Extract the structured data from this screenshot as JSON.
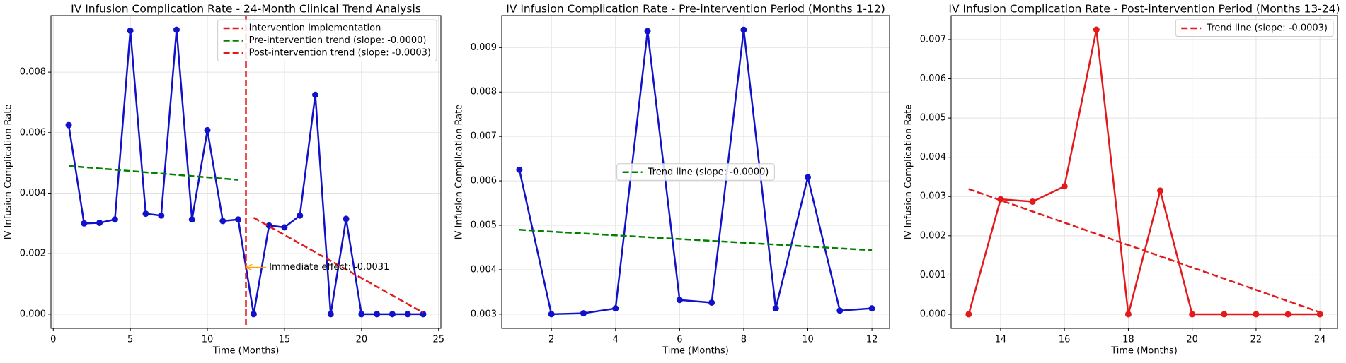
{
  "chart_data": [
    {
      "type": "line",
      "title": "IV Infusion Complication Rate - 24-Month Clinical Trend Analysis",
      "x_label": "Time (Months)",
      "y_label": "IV Infusion Complication Rate",
      "xlim": [
        -0.15,
        25.15
      ],
      "ylim": [
        -0.00047,
        0.00987
      ],
      "xticks": [
        0,
        5,
        10,
        15,
        20,
        25
      ],
      "yticks": [
        {
          "value": 0,
          "label": "0.000"
        },
        {
          "value": 0.002,
          "label": "0.002"
        },
        {
          "value": 0.004,
          "label": "0.004"
        },
        {
          "value": 0.006,
          "label": "0.006"
        },
        {
          "value": 0.008,
          "label": "0.008"
        }
      ],
      "grid": true,
      "legend": "upper right",
      "series": [
        {
          "color": "#1111cc",
          "marker": true,
          "dashed": false,
          "x": [
            1,
            2,
            3,
            4,
            5,
            6,
            7,
            8,
            9,
            10,
            11,
            12,
            13,
            14,
            15,
            16,
            17,
            18,
            19,
            20,
            21,
            22,
            23,
            24
          ],
          "values": [
            0.00625,
            0.003,
            0.00302,
            0.00313,
            0.00937,
            0.00332,
            0.00326,
            0.0094,
            0.00313,
            0.00608,
            0.00308,
            0.00313,
            0,
            0.00293,
            0.00287,
            0.00326,
            0.00725,
            0,
            0.00315,
            0,
            0,
            0,
            0,
            0
          ]
        },
        {
          "name": "Pre-intervention trend (slope: -0.0000)",
          "color": "#008000",
          "marker": false,
          "dashed": true,
          "x": [
            1,
            12
          ],
          "values": [
            0.0049,
            0.00444
          ]
        },
        {
          "name": "Post-intervention trend (slope: -0.0003)",
          "color": "#e31a1c",
          "marker": false,
          "dashed": true,
          "x": [
            13,
            24
          ],
          "values": [
            0.00319,
            5e-05
          ]
        }
      ],
      "vlines": [
        {
          "name": "Intervention Implementation",
          "x": 12.5,
          "color": "#e31a1c"
        }
      ],
      "annotations": [
        {
          "text": "Immediate effect: -0.0031",
          "x": 14,
          "y": 0.00155,
          "arrow_x": 12.5,
          "arrow_y": 0.00155,
          "color": "orange"
        }
      ]
    },
    {
      "type": "line",
      "title": "IV Infusion Complication Rate - Pre-intervention Period (Months 1-12)",
      "x_label": "Time (Months)",
      "y_label": "IV Infusion Complication Rate",
      "xlim": [
        0.45,
        12.55
      ],
      "ylim": [
        0.00268,
        0.00972
      ],
      "xticks": [
        2,
        4,
        6,
        8,
        10,
        12
      ],
      "yticks": [
        0.003,
        0.004,
        0.005,
        0.006,
        0.007,
        0.008,
        0.009
      ],
      "grid": true,
      "legend": "center",
      "series": [
        {
          "color": "#1111cc",
          "marker": true,
          "dashed": false,
          "x": [
            1,
            2,
            3,
            4,
            5,
            6,
            7,
            8,
            9,
            10,
            11,
            12
          ],
          "values": [
            0.00625,
            0.003,
            0.00302,
            0.00313,
            0.00937,
            0.00332,
            0.00326,
            0.0094,
            0.00313,
            0.00608,
            0.00308,
            0.00313
          ]
        },
        {
          "name": "Trend line (slope: -0.0000)",
          "color": "#008000",
          "marker": false,
          "dashed": true,
          "x": [
            1,
            12
          ],
          "values": [
            0.0049,
            0.00444
          ]
        }
      ],
      "vlines": [],
      "annotations": []
    },
    {
      "type": "line",
      "title": "IV Infusion Complication Rate - Post-intervention Period (Months 13-24)",
      "x_label": "Time (Months)",
      "y_label": "IV Infusion Complication Rate",
      "xlim": [
        12.45,
        24.55
      ],
      "ylim": [
        -0.00036,
        0.00761
      ],
      "xticks": [
        14,
        16,
        18,
        20,
        22,
        24
      ],
      "yticks": [
        {
          "value": 0,
          "label": "0.000"
        },
        {
          "value": 0.001,
          "label": "0.001"
        },
        {
          "value": 0.002,
          "label": "0.002"
        },
        {
          "value": 0.003,
          "label": "0.003"
        },
        {
          "value": 0.004,
          "label": "0.004"
        },
        {
          "value": 0.005,
          "label": "0.005"
        },
        {
          "value": 0.006,
          "label": "0.006"
        },
        {
          "value": 0.007,
          "label": "0.007"
        }
      ],
      "grid": true,
      "legend": "upper right",
      "series": [
        {
          "color": "#e31a1c",
          "marker": true,
          "dashed": false,
          "x": [
            13,
            14,
            15,
            16,
            17,
            18,
            19,
            20,
            21,
            22,
            23,
            24
          ],
          "values": [
            0,
            0.00293,
            0.00287,
            0.00326,
            0.00725,
            0,
            0.00315,
            0,
            0,
            0,
            0,
            0
          ]
        },
        {
          "name": "Trend line (slope: -0.0003)",
          "color": "#e31a1c",
          "marker": false,
          "dashed": true,
          "x": [
            13,
            24
          ],
          "values": [
            0.00319,
            5e-05
          ]
        }
      ],
      "vlines": [],
      "annotations": []
    }
  ]
}
